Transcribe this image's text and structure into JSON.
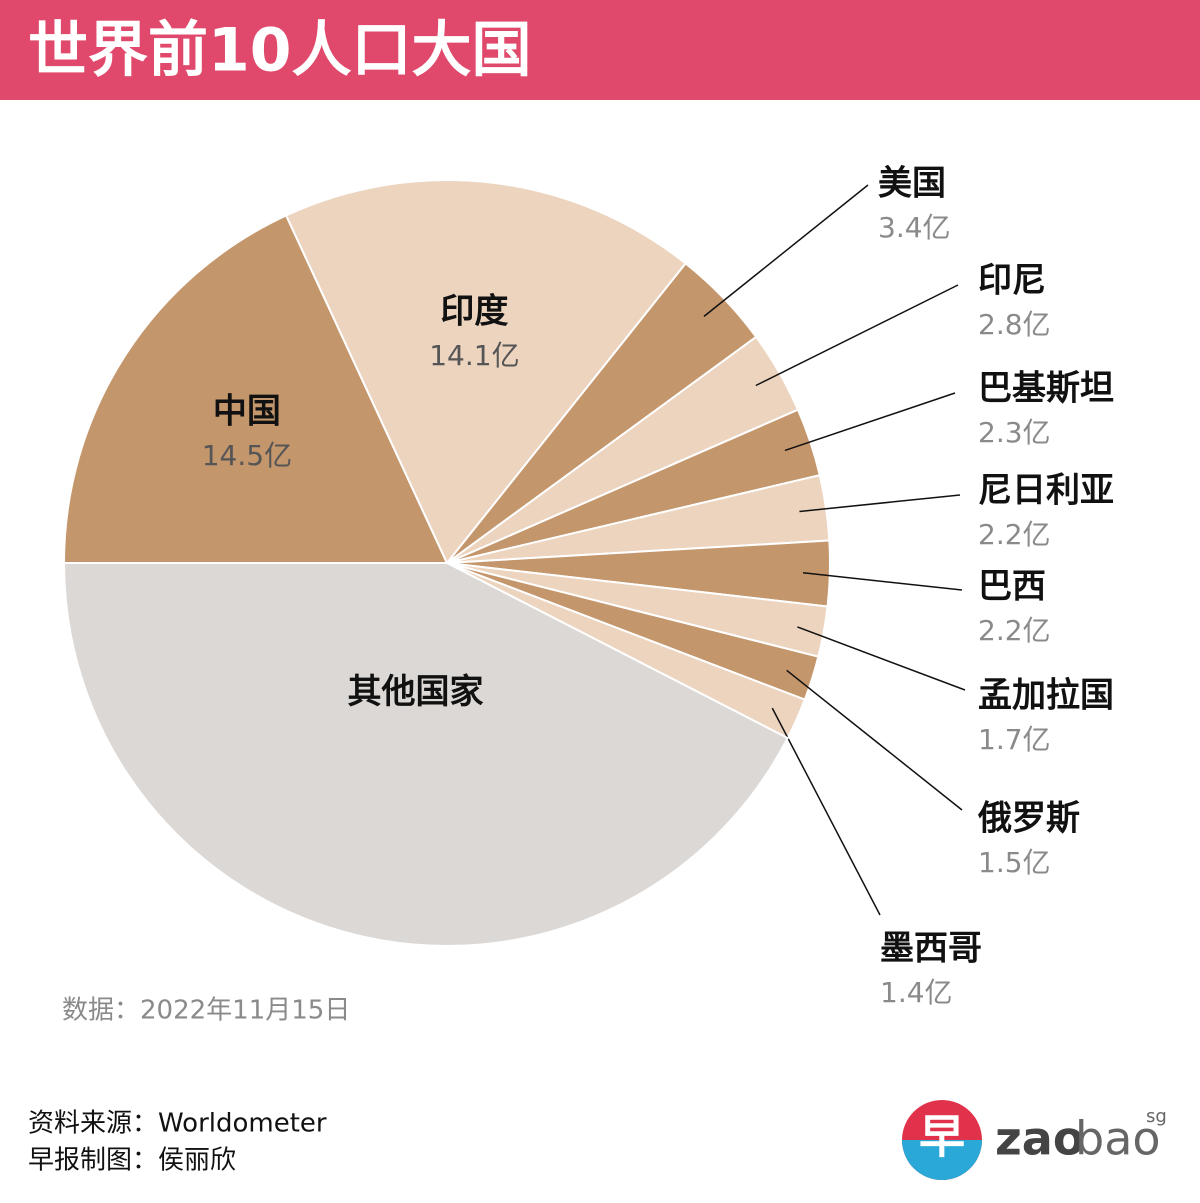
{
  "chart_data": {
    "type": "pie",
    "title": "世界前10人口大国",
    "categories": [
      "中国",
      "印度",
      "美国",
      "印尼",
      "巴基斯坦",
      "尼日利亚",
      "巴西",
      "孟加拉国",
      "俄罗斯",
      "墨西哥",
      "其他国家"
    ],
    "values": [
      14.5,
      14.1,
      3.4,
      2.8,
      2.3,
      2.2,
      2.2,
      1.7,
      1.5,
      1.4,
      34
    ],
    "value_labels": [
      "14.5亿",
      "14.1亿",
      "3.4亿",
      "2.8亿",
      "2.3亿",
      "2.2亿",
      "2.2亿",
      "1.7亿",
      "1.5亿",
      "1.4亿",
      null
    ],
    "colors": [
      "#c4966c",
      "#ecd4bf",
      "#c4966c",
      "#ecd4bf",
      "#c4966c",
      "#ecd4bf",
      "#c4966c",
      "#ecd4bf",
      "#c4966c",
      "#ecd4bf",
      "#dcd8d5"
    ],
    "note": "数据：2022年11月15日",
    "source": "资料来源：Worldometer",
    "credit": "早报制图：侯丽欣",
    "logo": {
      "mark": "早",
      "text_a": "zao",
      "text_b": "bao",
      "suffix": "sg"
    }
  }
}
